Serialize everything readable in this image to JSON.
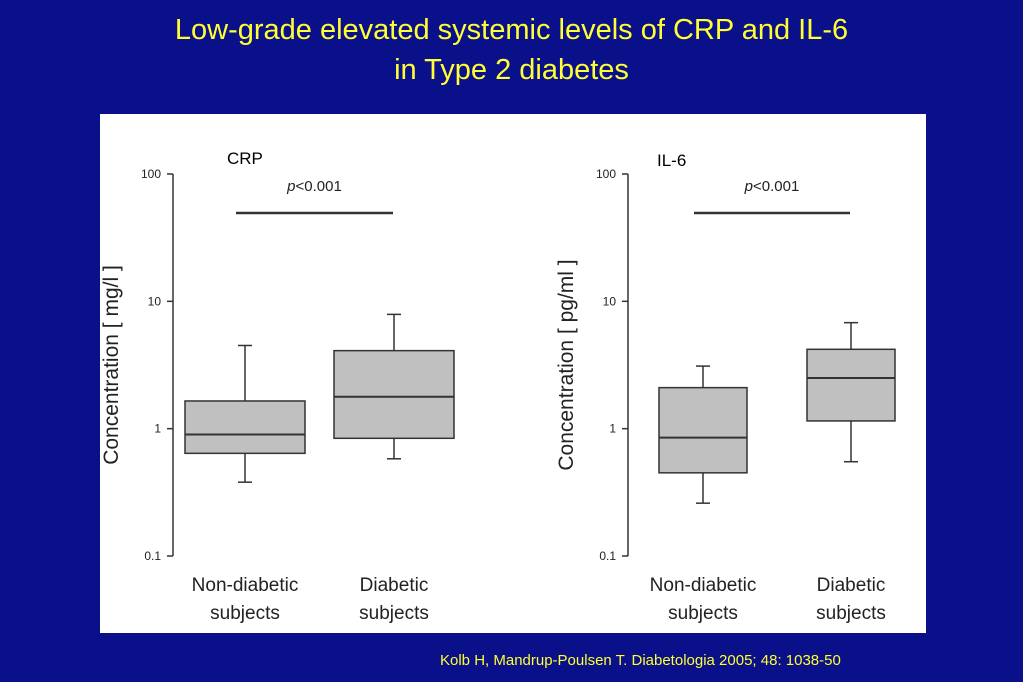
{
  "slide": {
    "title_line1": "Low-grade elevated systemic levels of CRP and IL-6",
    "title_line2": "in Type 2 diabetes",
    "citation": "Kolb H, Mandrup-Poulsen T. Diabetologia 2005; 48: 1038-50"
  },
  "colors": {
    "background": "#0a0f8a",
    "title": "#ffff33",
    "box_fill": "#c0c0c0",
    "line": "#333333"
  },
  "chart_data": [
    {
      "type": "boxplot",
      "title": "CRP",
      "ylabel": "Concentration [ mg/l ]",
      "yscale": "log",
      "ylim": [
        0.1,
        100
      ],
      "yticks": [
        0.1,
        1,
        10,
        100
      ],
      "ytick_labels": [
        "0.1",
        "1",
        "10",
        "100"
      ],
      "categories": [
        "Non-diabetic subjects",
        "Diabetic subjects"
      ],
      "category_lines": [
        [
          "Non-diabetic",
          "subjects"
        ],
        [
          "Diabetic",
          "subjects"
        ]
      ],
      "boxes": [
        {
          "whisker_low": 0.38,
          "q1": 0.64,
          "median": 0.9,
          "q3": 1.65,
          "whisker_high": 4.5
        },
        {
          "whisker_low": 0.58,
          "q1": 0.84,
          "median": 1.78,
          "q3": 4.1,
          "whisker_high": 7.9
        }
      ],
      "significance": {
        "label_p": "p",
        "label_rest": "<0.001",
        "y": 35
      }
    },
    {
      "type": "boxplot",
      "title": "IL-6",
      "ylabel": "Concentration [ pg/ml ]",
      "yscale": "log",
      "ylim": [
        0.1,
        100
      ],
      "yticks": [
        0.1,
        1,
        10,
        100
      ],
      "ytick_labels": [
        "0.1",
        "1",
        "10",
        "100"
      ],
      "categories": [
        "Non-diabetic subjects",
        "Diabetic subjects"
      ],
      "category_lines": [
        [
          "Non-diabetic",
          "subjects"
        ],
        [
          "Diabetic",
          "subjects"
        ]
      ],
      "boxes": [
        {
          "whisker_low": 0.26,
          "q1": 0.45,
          "median": 0.85,
          "q3": 2.1,
          "whisker_high": 3.1
        },
        {
          "whisker_low": 0.55,
          "q1": 1.15,
          "median": 2.5,
          "q3": 4.2,
          "whisker_high": 6.8
        }
      ],
      "significance": {
        "label_p": "p",
        "label_rest": "<0.001",
        "y": 35
      }
    }
  ]
}
